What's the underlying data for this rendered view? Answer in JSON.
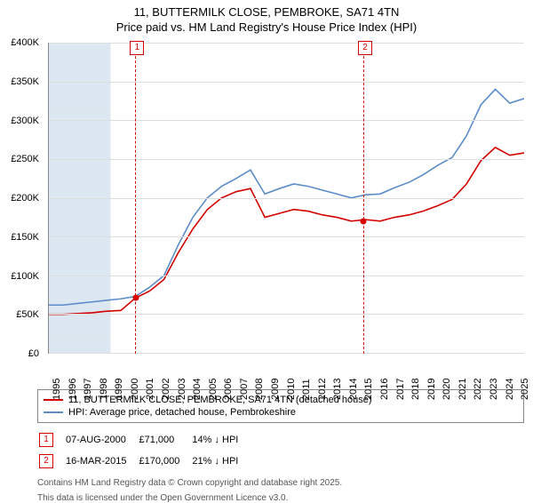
{
  "title": "11, BUTTERMILK CLOSE, PEMBROKE, SA71 4TN",
  "subtitle": "Price paid vs. HM Land Registry's House Price Index (HPI)",
  "chart": {
    "type": "line",
    "background_color": "#ffffff",
    "shade_color": "rgba(156,186,214,0.35)",
    "grid_color": "#dddddd",
    "axis_color": "#888888",
    "x_years": [
      1995,
      1996,
      1997,
      1998,
      1999,
      2000,
      2001,
      2002,
      2003,
      2004,
      2005,
      2006,
      2007,
      2008,
      2009,
      2010,
      2011,
      2012,
      2013,
      2014,
      2015,
      2016,
      2017,
      2018,
      2019,
      2020,
      2021,
      2022,
      2023,
      2024,
      2025
    ],
    "xlim": [
      1995,
      2025.5
    ],
    "ylim": [
      0,
      400000
    ],
    "ytick_step": 50000,
    "yticks": [
      "£0",
      "£50K",
      "£100K",
      "£150K",
      "£200K",
      "£250K",
      "£300K",
      "£350K",
      "£400K"
    ],
    "label_fontsize": 11,
    "series": {
      "price_paid": {
        "color": "#d40000",
        "width": 1.6,
        "label": "11, BUTTERMILK CLOSE, PEMBROKE, SA71 4TN (detached house)",
        "values": [
          50,
          50,
          51,
          52,
          54,
          55,
          71,
          80,
          95,
          130,
          160,
          185,
          200,
          208,
          212,
          175,
          180,
          185,
          183,
          178,
          175,
          170,
          172,
          170,
          175,
          178,
          183,
          190,
          198,
          218,
          248,
          265,
          255,
          258
        ]
      },
      "hpi": {
        "color": "#5b8cc9",
        "width": 1.6,
        "label": "HPI: Average price, detached house, Pembrokeshire",
        "values": [
          62,
          62,
          64,
          66,
          68,
          70,
          73,
          85,
          100,
          140,
          175,
          200,
          215,
          225,
          236,
          205,
          212,
          218,
          215,
          210,
          205,
          200,
          204,
          205,
          213,
          220,
          230,
          242,
          252,
          280,
          320,
          340,
          322,
          328
        ]
      }
    },
    "events": [
      {
        "n": 1,
        "year": 2000.6,
        "color": "#d40000"
      },
      {
        "n": 2,
        "year": 2015.2,
        "color": "#d40000"
      }
    ],
    "sale_points": [
      {
        "year": 2000.6,
        "value": 71,
        "color": "#d40000"
      },
      {
        "year": 2015.2,
        "value": 170,
        "color": "#d40000"
      }
    ]
  },
  "sales": [
    {
      "n": 1,
      "date": "07-AUG-2000",
      "price": "£71,000",
      "delta": "14% ↓ HPI",
      "color": "#d40000"
    },
    {
      "n": 2,
      "date": "16-MAR-2015",
      "price": "£170,000",
      "delta": "21% ↓ HPI",
      "color": "#d40000"
    }
  ],
  "footer1": "Contains HM Land Registry data © Crown copyright and database right 2025.",
  "footer2": "This data is licensed under the Open Government Licence v3.0."
}
